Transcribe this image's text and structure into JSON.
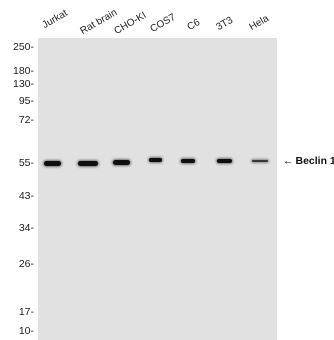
{
  "lanes": [
    {
      "label": "Jurkat",
      "band_intensity": 1.0
    },
    {
      "label": "Rat brain",
      "band_intensity": 1.0
    },
    {
      "label": "CHO-KI",
      "band_intensity": 1.0
    },
    {
      "label": "COS7",
      "band_intensity": 0.85
    },
    {
      "label": "C6",
      "band_intensity": 0.85
    },
    {
      "label": "3T3",
      "band_intensity": 0.85
    },
    {
      "label": "Hela",
      "band_intensity": 0.6
    }
  ],
  "mw_markers": [
    "250-",
    "180-",
    "130-",
    "95-",
    "72-",
    "55-",
    "43-",
    "34-",
    "26-",
    "17-",
    "10-"
  ],
  "annotation": {
    "arrow": "←",
    "label": "Beclin 1"
  },
  "colors": {
    "membrane": "#e1e1e1",
    "band": "#0f0f0f"
  }
}
